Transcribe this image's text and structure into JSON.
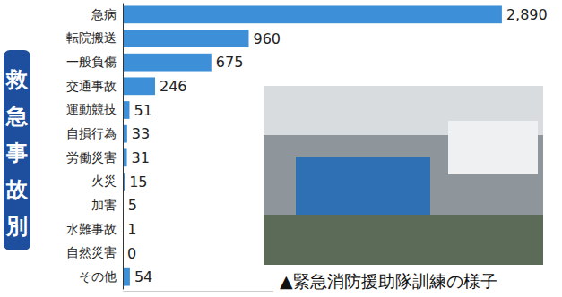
{
  "chart_data": {
    "type": "bar",
    "orientation": "horizontal",
    "title": "救急事故別",
    "annotations": [
      "▲緊急消防援助隊訓練の様子"
    ],
    "categories": [
      "急病",
      "転院搬送",
      "一般負傷",
      "交通事故",
      "運動競技",
      "自損行為",
      "労働災害",
      "火災",
      "加害",
      "水難事故",
      "自然災害",
      "その他"
    ],
    "values": [
      2890,
      960,
      675,
      246,
      51,
      33,
      31,
      15,
      5,
      1,
      0,
      54
    ],
    "value_labels": [
      "2,890",
      "960",
      "675",
      "246",
      "51",
      "33",
      "31",
      "15",
      "5",
      "1",
      "0",
      "54"
    ],
    "color": "#3d8fd8",
    "xlim": [
      0,
      3000
    ],
    "xticks": [],
    "grid": false,
    "data_labels": true,
    "tick_labels": "y"
  }
}
